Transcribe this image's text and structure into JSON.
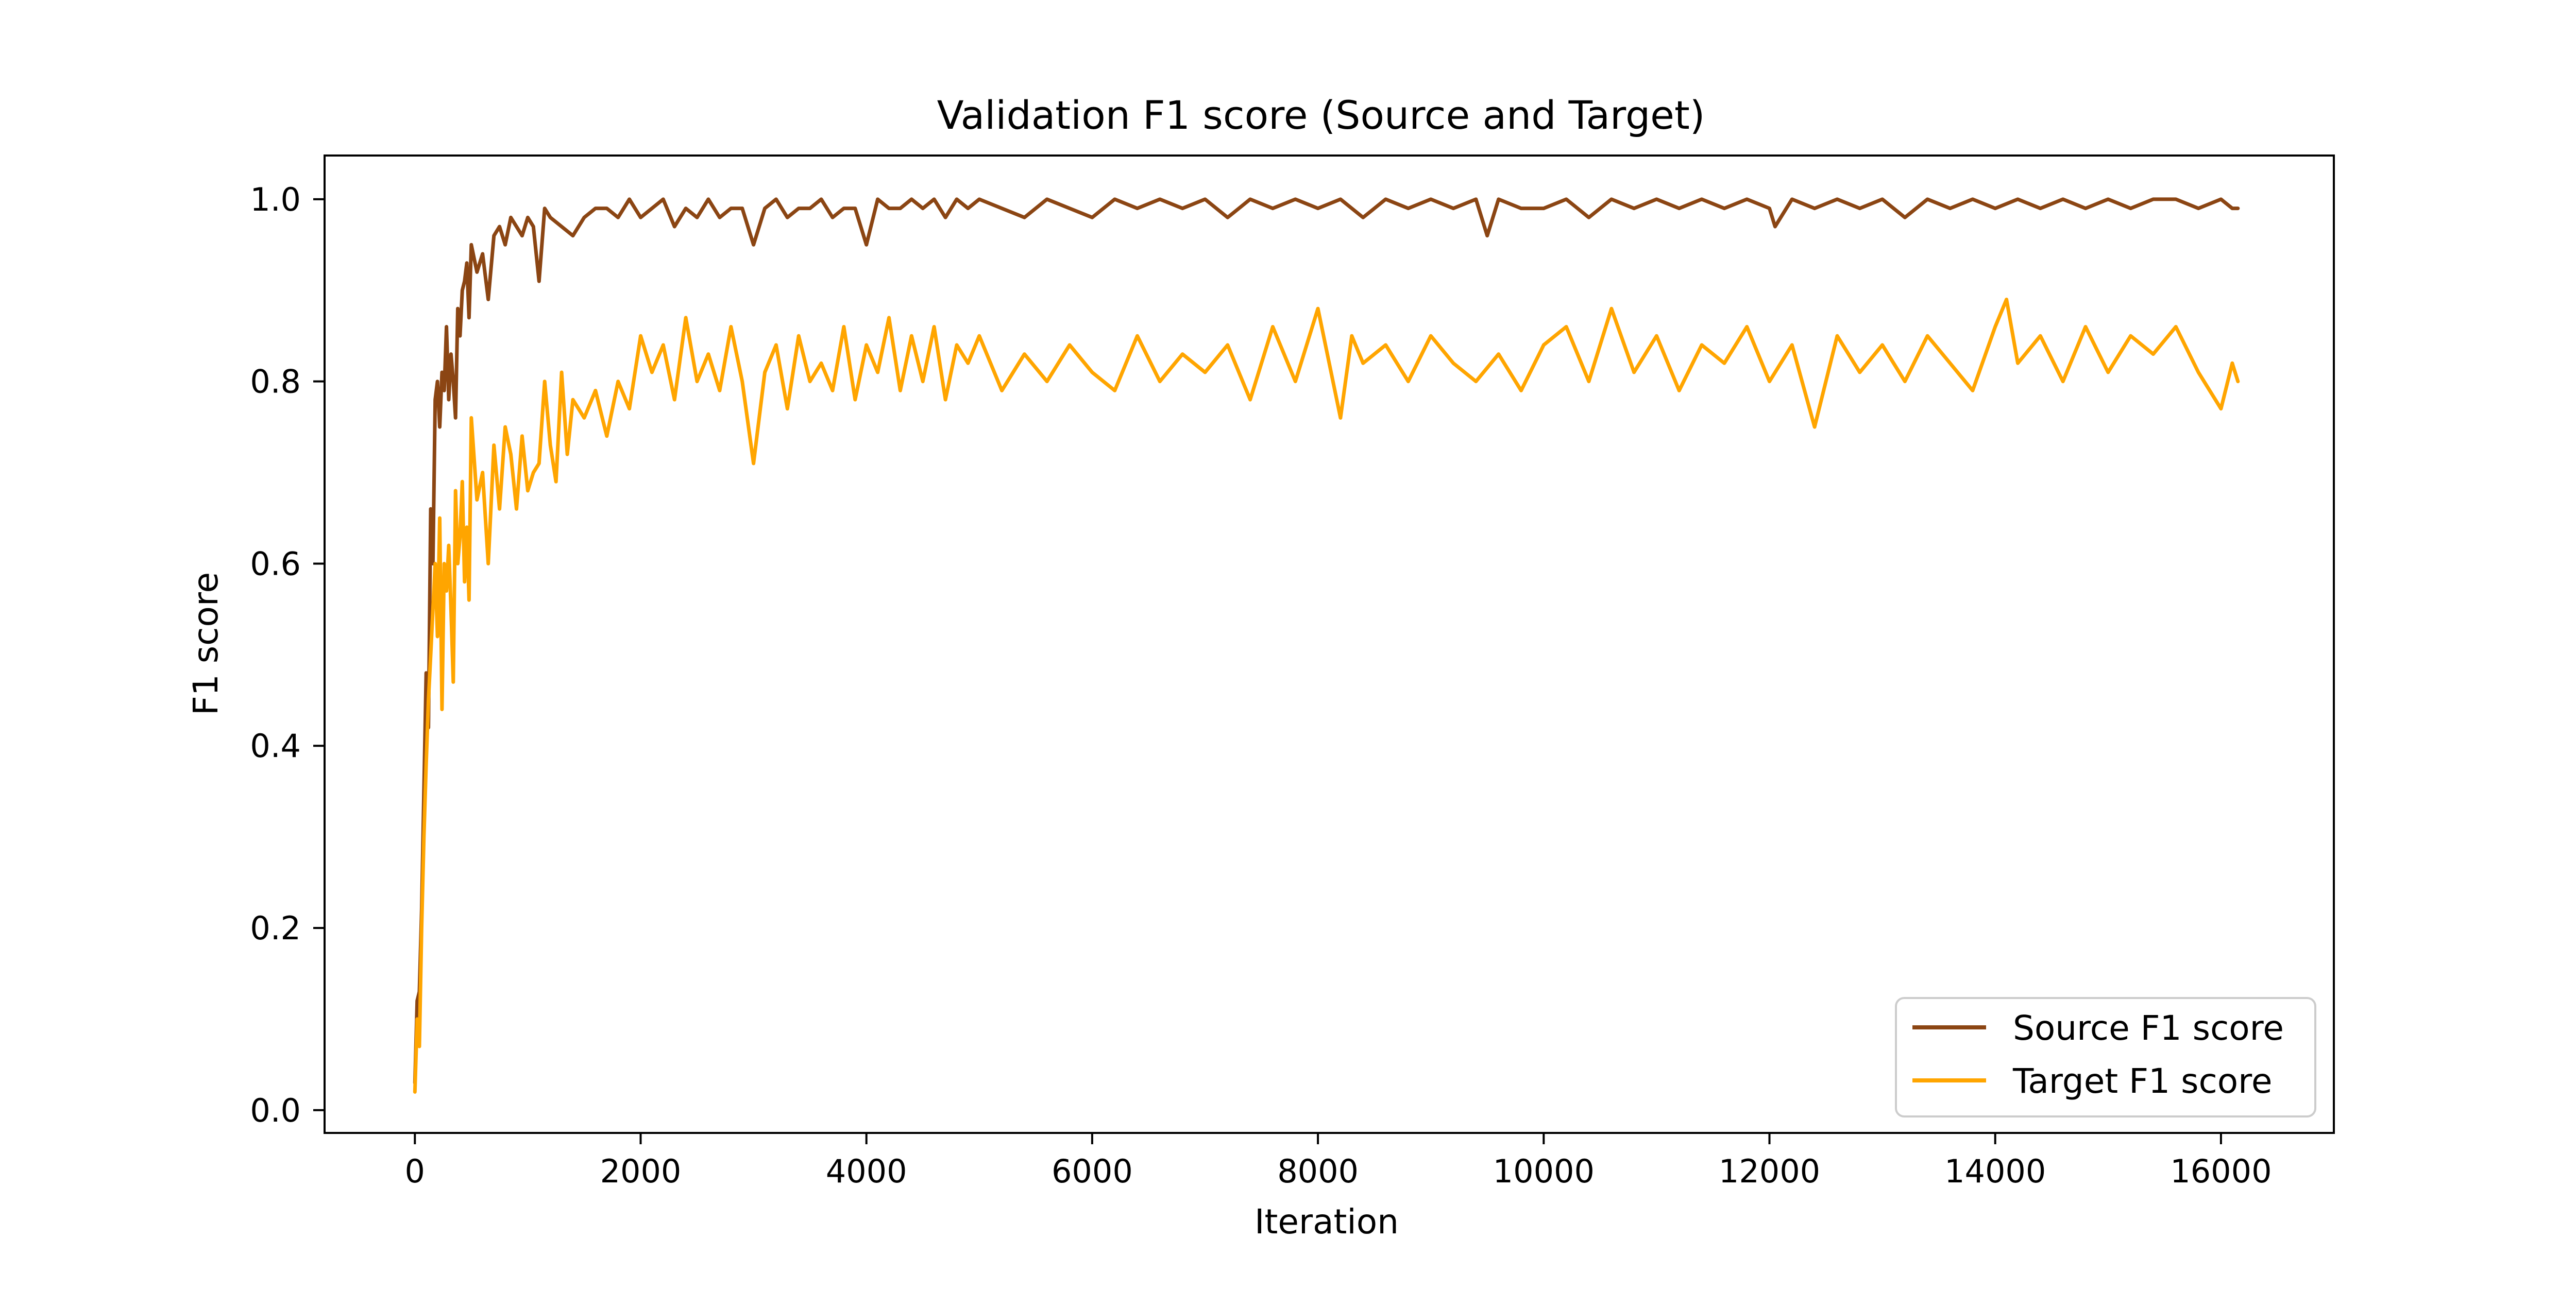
{
  "chart_data": {
    "type": "line",
    "title": "Validation F1 score (Source and Target)",
    "xlabel": "Iteration",
    "ylabel": "F1 score",
    "xlim": [
      -800,
      17000
    ],
    "ylim": [
      -0.025,
      1.048
    ],
    "xticks": [
      0,
      2000,
      4000,
      6000,
      8000,
      10000,
      12000,
      14000,
      16000
    ],
    "yticks": [
      0.0,
      0.2,
      0.4,
      0.6,
      0.8,
      1.0
    ],
    "grid": false,
    "legend_position": "bottom-right",
    "series": [
      {
        "name": "Source F1 score",
        "color": "#8B4513",
        "x": [
          0,
          20,
          40,
          60,
          80,
          100,
          120,
          140,
          160,
          180,
          200,
          220,
          240,
          260,
          280,
          300,
          320,
          340,
          360,
          380,
          400,
          420,
          440,
          460,
          480,
          500,
          550,
          600,
          650,
          700,
          750,
          800,
          850,
          900,
          950,
          1000,
          1050,
          1100,
          1150,
          1200,
          1300,
          1400,
          1500,
          1600,
          1700,
          1800,
          1900,
          2000,
          2100,
          2200,
          2300,
          2400,
          2500,
          2600,
          2700,
          2800,
          2900,
          3000,
          3100,
          3200,
          3300,
          3400,
          3500,
          3600,
          3700,
          3800,
          3900,
          4000,
          4100,
          4200,
          4300,
          4400,
          4500,
          4600,
          4700,
          4800,
          4900,
          5000,
          5200,
          5400,
          5600,
          5800,
          6000,
          6200,
          6400,
          6600,
          6800,
          7000,
          7200,
          7400,
          7600,
          7800,
          8000,
          8200,
          8400,
          8600,
          8800,
          9000,
          9200,
          9400,
          9500,
          9600,
          9800,
          10000,
          10200,
          10400,
          10600,
          10800,
          11000,
          11200,
          11400,
          11600,
          11800,
          12000,
          12050,
          12200,
          12400,
          12600,
          12800,
          13000,
          13200,
          13400,
          13600,
          13800,
          14000,
          14200,
          14400,
          14600,
          14800,
          15000,
          15200,
          15400,
          15600,
          15800,
          16000,
          16100,
          16150
        ],
        "y": [
          0.03,
          0.12,
          0.13,
          0.22,
          0.35,
          0.48,
          0.42,
          0.66,
          0.6,
          0.78,
          0.8,
          0.75,
          0.81,
          0.79,
          0.86,
          0.78,
          0.83,
          0.8,
          0.76,
          0.88,
          0.85,
          0.9,
          0.91,
          0.93,
          0.87,
          0.95,
          0.92,
          0.94,
          0.89,
          0.96,
          0.97,
          0.95,
          0.98,
          0.97,
          0.96,
          0.98,
          0.97,
          0.91,
          0.99,
          0.98,
          0.97,
          0.96,
          0.98,
          0.99,
          0.99,
          0.98,
          1.0,
          0.98,
          0.99,
          1.0,
          0.97,
          0.99,
          0.98,
          1.0,
          0.98,
          0.99,
          0.99,
          0.95,
          0.99,
          1.0,
          0.98,
          0.99,
          0.99,
          1.0,
          0.98,
          0.99,
          0.99,
          0.95,
          1.0,
          0.99,
          0.99,
          1.0,
          0.99,
          1.0,
          0.98,
          1.0,
          0.99,
          1.0,
          0.99,
          0.98,
          1.0,
          0.99,
          0.98,
          1.0,
          0.99,
          1.0,
          0.99,
          1.0,
          0.98,
          1.0,
          0.99,
          1.0,
          0.99,
          1.0,
          0.98,
          1.0,
          0.99,
          1.0,
          0.99,
          1.0,
          0.96,
          1.0,
          0.99,
          0.99,
          1.0,
          0.98,
          1.0,
          0.99,
          1.0,
          0.99,
          1.0,
          0.99,
          1.0,
          0.99,
          0.97,
          1.0,
          0.99,
          1.0,
          0.99,
          1.0,
          0.98,
          1.0,
          0.99,
          1.0,
          0.99,
          1.0,
          0.99,
          1.0,
          0.99,
          1.0,
          0.99,
          1.0,
          1.0,
          0.99,
          1.0,
          0.99,
          0.99
        ]
      },
      {
        "name": "Target F1 score",
        "color": "#FFA500",
        "x": [
          0,
          20,
          40,
          60,
          80,
          100,
          120,
          140,
          160,
          180,
          200,
          220,
          240,
          260,
          280,
          300,
          320,
          340,
          360,
          380,
          400,
          420,
          440,
          460,
          480,
          500,
          550,
          600,
          650,
          700,
          750,
          800,
          850,
          900,
          950,
          1000,
          1050,
          1100,
          1150,
          1200,
          1250,
          1300,
          1350,
          1400,
          1500,
          1600,
          1700,
          1800,
          1900,
          2000,
          2100,
          2200,
          2300,
          2400,
          2500,
          2600,
          2700,
          2800,
          2900,
          3000,
          3100,
          3200,
          3300,
          3400,
          3500,
          3600,
          3700,
          3800,
          3900,
          4000,
          4100,
          4200,
          4300,
          4400,
          4500,
          4600,
          4700,
          4800,
          4900,
          5000,
          5200,
          5400,
          5600,
          5800,
          6000,
          6200,
          6400,
          6600,
          6800,
          7000,
          7200,
          7400,
          7600,
          7800,
          8000,
          8200,
          8300,
          8400,
          8600,
          8800,
          9000,
          9200,
          9400,
          9600,
          9800,
          10000,
          10200,
          10400,
          10600,
          10800,
          11000,
          11200,
          11400,
          11600,
          11800,
          12000,
          12200,
          12400,
          12600,
          12800,
          13000,
          13200,
          13400,
          13600,
          13800,
          14000,
          14100,
          14200,
          14400,
          14600,
          14800,
          15000,
          15200,
          15400,
          15600,
          15800,
          16000,
          16100,
          16150
        ],
        "y": [
          0.02,
          0.1,
          0.07,
          0.2,
          0.3,
          0.38,
          0.45,
          0.5,
          0.55,
          0.6,
          0.52,
          0.65,
          0.44,
          0.6,
          0.57,
          0.62,
          0.55,
          0.47,
          0.68,
          0.6,
          0.63,
          0.69,
          0.58,
          0.64,
          0.56,
          0.76,
          0.67,
          0.7,
          0.6,
          0.73,
          0.66,
          0.75,
          0.72,
          0.66,
          0.74,
          0.68,
          0.7,
          0.71,
          0.8,
          0.73,
          0.69,
          0.81,
          0.72,
          0.78,
          0.76,
          0.79,
          0.74,
          0.8,
          0.77,
          0.85,
          0.81,
          0.84,
          0.78,
          0.87,
          0.8,
          0.83,
          0.79,
          0.86,
          0.8,
          0.71,
          0.81,
          0.84,
          0.77,
          0.85,
          0.8,
          0.82,
          0.79,
          0.86,
          0.78,
          0.84,
          0.81,
          0.87,
          0.79,
          0.85,
          0.8,
          0.86,
          0.78,
          0.84,
          0.82,
          0.85,
          0.79,
          0.83,
          0.8,
          0.84,
          0.81,
          0.79,
          0.85,
          0.8,
          0.83,
          0.81,
          0.84,
          0.78,
          0.86,
          0.8,
          0.88,
          0.76,
          0.85,
          0.82,
          0.84,
          0.8,
          0.85,
          0.82,
          0.8,
          0.83,
          0.79,
          0.84,
          0.86,
          0.8,
          0.88,
          0.81,
          0.85,
          0.79,
          0.84,
          0.82,
          0.86,
          0.8,
          0.84,
          0.75,
          0.85,
          0.81,
          0.84,
          0.8,
          0.85,
          0.82,
          0.79,
          0.86,
          0.89,
          0.82,
          0.85,
          0.8,
          0.86,
          0.81,
          0.85,
          0.83,
          0.86,
          0.81,
          0.77,
          0.82,
          0.8
        ]
      }
    ]
  }
}
